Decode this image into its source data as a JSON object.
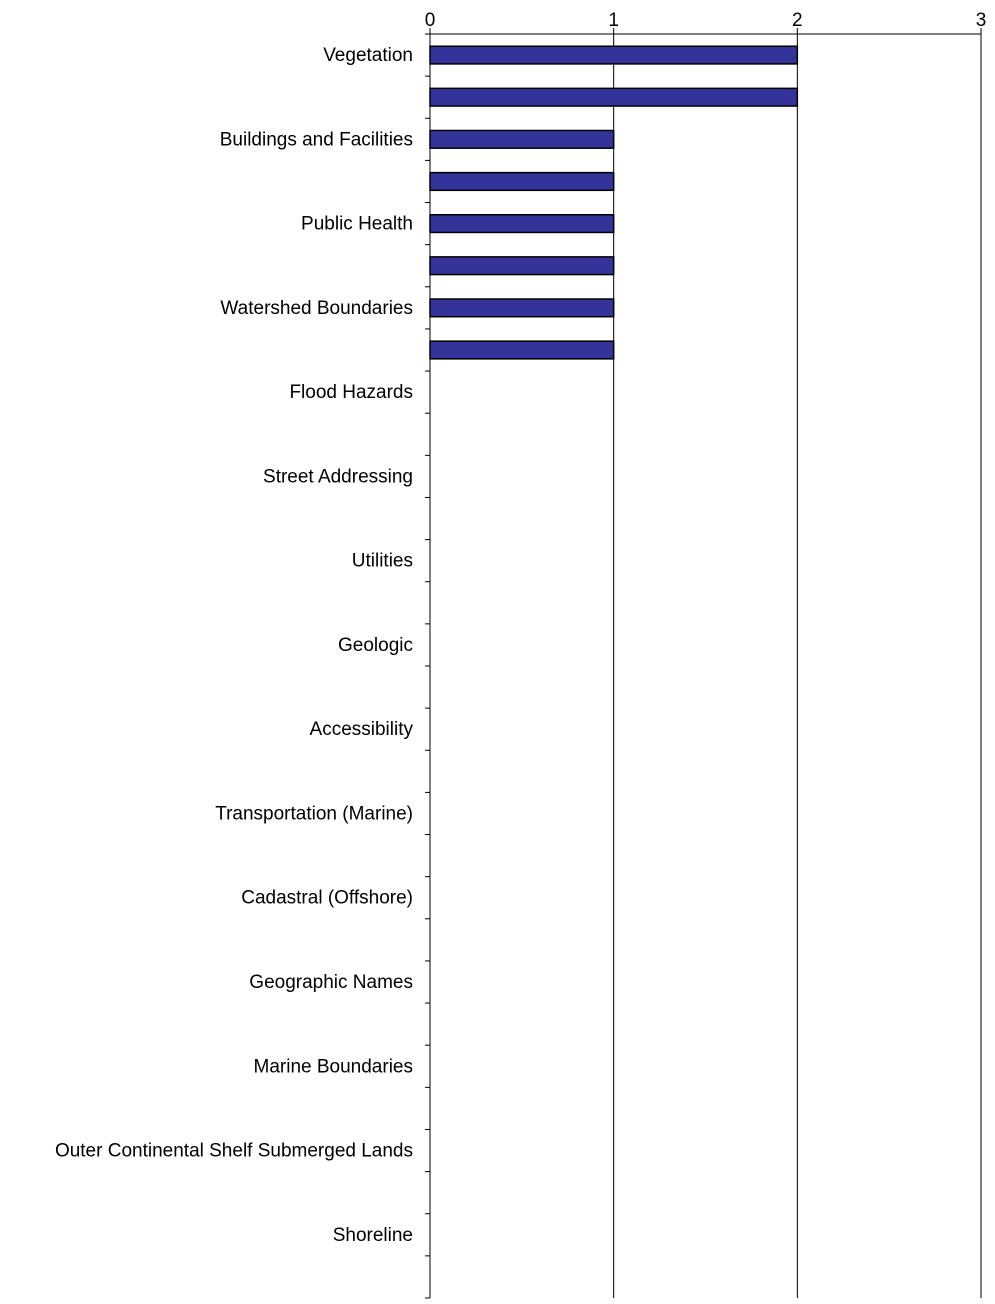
{
  "chart_data": {
    "type": "bar",
    "orientation": "horizontal",
    "title": "",
    "xlabel": "",
    "ylabel": "",
    "xlim": [
      0,
      3
    ],
    "x_ticks": [
      "0",
      "1",
      "2",
      "3"
    ],
    "x_axis_position": "top",
    "grid": "vertical gridlines at each integer tick",
    "categories": [
      "Vegetation",
      "",
      "Buildings and Facilities",
      "",
      "Public Health",
      "",
      "Watershed Boundaries",
      "",
      "Flood Hazards",
      "",
      "Street Addressing",
      "",
      "Utilities",
      "",
      "Geologic",
      "",
      "Accessibility",
      "",
      "Transportation (Marine)",
      "",
      "Cadastral (Offshore)",
      "",
      "Geographic Names",
      "",
      "Marine Boundaries",
      "",
      "Outer Continental Shelf Submerged Lands",
      "",
      "Shoreline",
      ""
    ],
    "values": [
      2,
      2,
      1,
      1,
      1,
      1,
      1,
      1,
      0,
      0,
      0,
      0,
      0,
      0,
      0,
      0,
      0,
      0,
      0,
      0,
      0,
      0,
      0,
      0,
      0,
      0,
      0,
      0,
      0,
      0
    ],
    "bar_color": "#333399",
    "bar_edge_color": "#000000"
  }
}
